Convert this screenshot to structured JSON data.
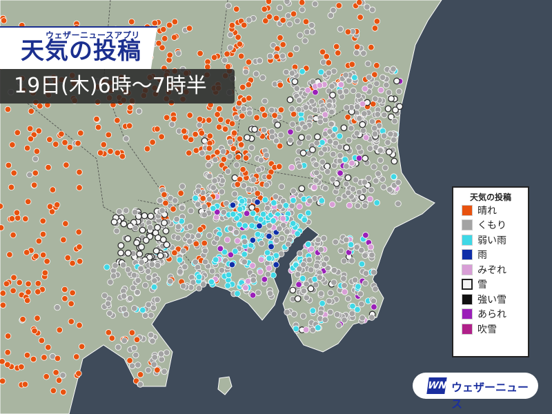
{
  "header": {
    "app_name": "ウェザーニュースアプリ",
    "title": "天気の投稿",
    "time_range": "19日(木)6時〜7時半"
  },
  "legend": {
    "title": "天気の投稿",
    "items": [
      {
        "label": "晴れ",
        "color": "#e8520f"
      },
      {
        "label": "くもり",
        "color": "#a3a3a3"
      },
      {
        "label": "弱い雨",
        "color": "#3fd8e6"
      },
      {
        "label": "雨",
        "color": "#0f2ea8"
      },
      {
        "label": "みぞれ",
        "color": "#d89ed6"
      },
      {
        "label": "雪",
        "color": "#f4f4f4"
      },
      {
        "label": "強い雪",
        "color": "#111111"
      },
      {
        "label": "あられ",
        "color": "#9a1fb8"
      },
      {
        "label": "吹雪",
        "color": "#b0208a"
      }
    ]
  },
  "logo": {
    "mark": "WN",
    "text": "ウェザーニュース"
  },
  "colors": {
    "sea": "#3f4b5a",
    "land": "#a9b5a1",
    "title_blue": "#1b2f8f"
  }
}
